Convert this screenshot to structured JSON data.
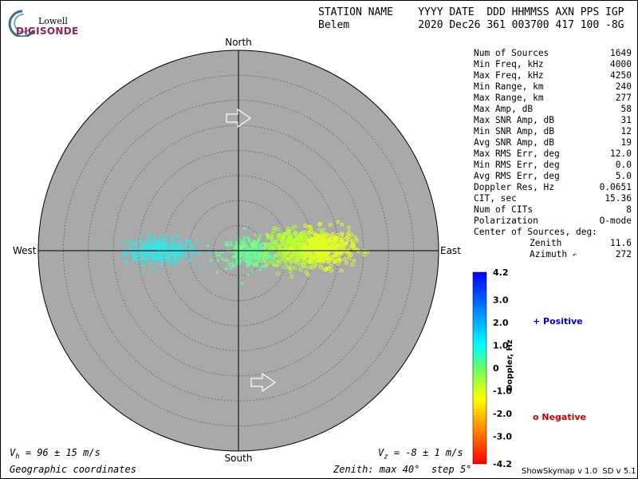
{
  "logo": {
    "brand_line1": "Lowell",
    "brand_line2": "DIGISONDE"
  },
  "header": {
    "col_heads": "STATION NAME    YYYY DATE  DDD HHMMSS AXN PPS IGP",
    "values_line": "Belem           2020 Dec26 361 003700 417 100 -8G"
  },
  "stats": [
    {
      "label": "Num of Sources",
      "value": "1649"
    },
    {
      "label": "Min Freq, kHz",
      "value": "4000"
    },
    {
      "label": "Max Freq, kHz",
      "value": "4250"
    },
    {
      "label": "Min Range, km",
      "value": "240"
    },
    {
      "label": "Max Range, km",
      "value": "277"
    },
    {
      "label": "Max Amp, dB",
      "value": "58"
    },
    {
      "label": "Max SNR Amp, dB",
      "value": "31"
    },
    {
      "label": "Min SNR Amp, dB",
      "value": "12"
    },
    {
      "label": "Avg SNR Amp, dB",
      "value": "19"
    },
    {
      "label": "Max RMS Err, deg",
      "value": "12.0"
    },
    {
      "label": "Min RMS Err, deg",
      "value": "0.0"
    },
    {
      "label": "Avg RMS Err, deg",
      "value": "5.0"
    },
    {
      "label": "Doppler Res, Hz",
      "value": "0.0651"
    },
    {
      "label": "CIT, sec",
      "value": "15.36"
    },
    {
      "label": "Num of CITs",
      "value": "8"
    },
    {
      "label": "Polarization",
      "value": "O-mode"
    }
  ],
  "center": {
    "title": "Center of Sources, deg:",
    "zenith_label": "Zenith",
    "zenith_value": "11.6",
    "azimuth_label": "Azimuth",
    "azimuth_value": "272"
  },
  "legend": {
    "positive": "+ Positive",
    "negative": "o Negative",
    "colorbar_label": "Doppler, Hz"
  },
  "bottom": {
    "vh": "V  = 96 ± 15 m/s",
    "vh_sub": "h",
    "vz": "V  = -8 ± 1 m/s",
    "vz_sub": "z",
    "coords": "Geographic coordinates",
    "zenith_info": "Zenith: max 40°  step 5°",
    "version": "ShowSkymap v 1.0  SD v 5.1"
  },
  "colors": {
    "disk": "#a9a9a9",
    "grid": "#555555"
  },
  "chart_data": {
    "type": "scatter",
    "polar": true,
    "directions": {
      "north": "North",
      "south": "South",
      "east": "East",
      "west": "West"
    },
    "zenith_max_deg": 40,
    "zenith_step_deg": 5,
    "colorbar": {
      "min": -4.2,
      "max": 4.2,
      "ticks": [
        "4.2",
        "3.0",
        "2.0",
        "1.0",
        "0",
        "-1.0",
        "-2.0",
        "-3.0",
        "-4.2"
      ]
    },
    "drift_arrows": [
      {
        "position": "north",
        "direction": "east"
      },
      {
        "position": "south",
        "direction": "east"
      }
    ],
    "clusters": [
      {
        "name": "Positive",
        "marker": "+",
        "color": "#33e6e6",
        "center_east_deg": -15.5,
        "center_north_deg": 0.0,
        "spread_east_deg": 3.5,
        "spread_north_deg": 1.3,
        "count": 360
      },
      {
        "name": "Positive",
        "marker": "+",
        "color": "#66ff99",
        "center_east_deg": 2.5,
        "center_north_deg": -0.5,
        "spread_east_deg": 3.0,
        "spread_north_deg": 1.5,
        "count": 320
      },
      {
        "name": "Negative",
        "marker": "o",
        "color": "#b6ff33",
        "center_east_deg": 12.0,
        "center_north_deg": 0.5,
        "spread_east_deg": 3.0,
        "spread_north_deg": 1.8,
        "count": 450
      },
      {
        "name": "Negative",
        "marker": "o",
        "color": "#e6ff22",
        "center_east_deg": 17.5,
        "center_north_deg": 0.5,
        "spread_east_deg": 2.8,
        "spread_north_deg": 1.8,
        "count": 330
      }
    ]
  }
}
